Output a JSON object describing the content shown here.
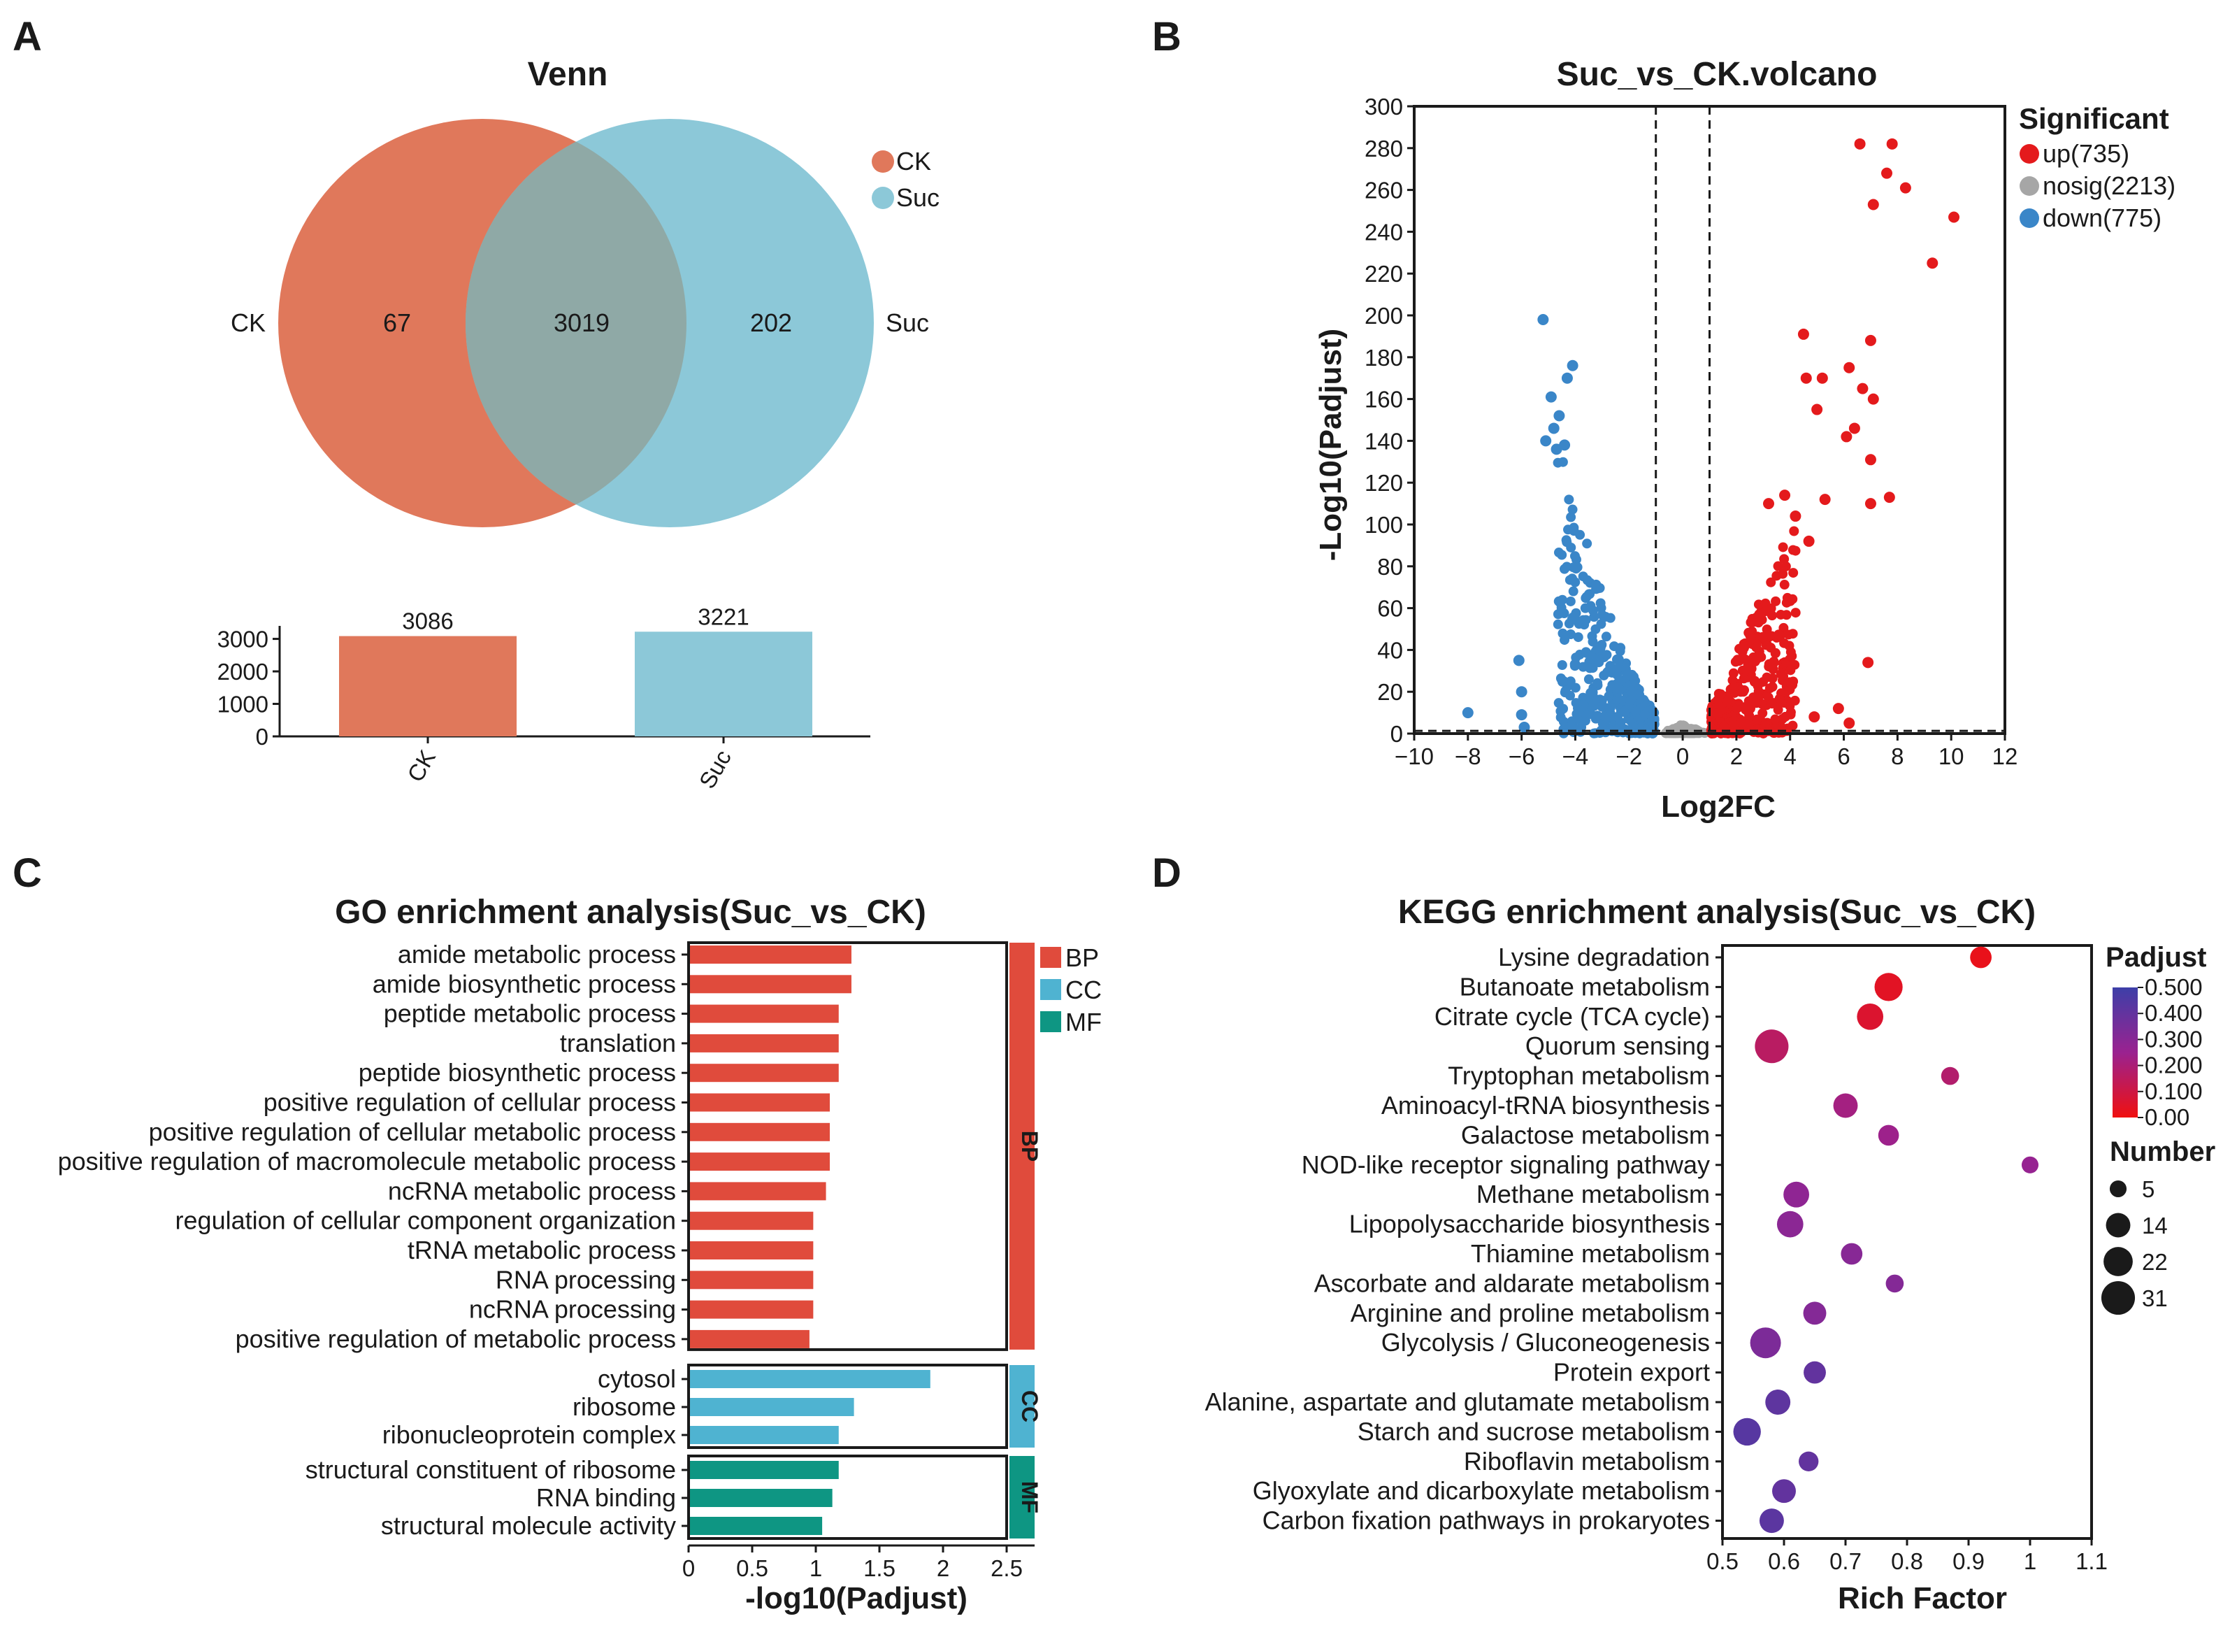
{
  "colors": {
    "ck": "#E0785B",
    "suc": "#8CC8D8",
    "overlap": "#8FA9A6",
    "up": "#E41A1C",
    "nosig": "#A6A6A6",
    "down": "#3A86C8",
    "bp": "#E04B3C",
    "cc": "#4FB3D1",
    "mf": "#0E9683"
  },
  "panel_labels": {
    "a": "A",
    "b": "B",
    "c": "C",
    "d": "D"
  },
  "chart_data": [
    {
      "type": "venn",
      "title": "Venn",
      "sets": [
        "CK",
        "Suc"
      ],
      "legend": [
        "CK",
        "Suc"
      ],
      "regions": {
        "only_ck": "67",
        "both": "3019",
        "only_suc": "202"
      },
      "bar": {
        "type": "bar",
        "categories": [
          "CK",
          "Suc"
        ],
        "values": [
          3086,
          3221
        ],
        "value_labels": [
          "3086",
          "3221"
        ],
        "ylim": [
          0,
          3400
        ],
        "yticks": [
          "0",
          "1000",
          "2000",
          "3000"
        ]
      }
    },
    {
      "type": "scatter",
      "title": "Suc_vs_CK.volcano",
      "xlabel": "Log2FC",
      "ylabel": "-Log10(Padjust)",
      "xlim": [
        -10,
        12
      ],
      "ylim": [
        0,
        300
      ],
      "xticks": [
        "-10",
        "-8",
        "-6",
        "-4",
        "-2",
        "0",
        "2",
        "4",
        "6",
        "8",
        "10",
        "12"
      ],
      "yticks": [
        "0",
        "20",
        "40",
        "60",
        "80",
        "100",
        "120",
        "140",
        "160",
        "180",
        "200",
        "220",
        "240",
        "260",
        "280",
        "300"
      ],
      "thresholds": {
        "log2fc": [
          -1,
          1
        ],
        "padj_line": 1.3
      },
      "legend_title": "Significant",
      "series": [
        {
          "name": "up(735)",
          "key": "up"
        },
        {
          "name": "nosig(2213)",
          "key": "nosig"
        },
        {
          "name": "down(775)",
          "key": "down"
        }
      ],
      "highlight_points": {
        "up": [
          [
            6.6,
            282
          ],
          [
            7.8,
            282
          ],
          [
            7.6,
            268
          ],
          [
            8.3,
            261
          ],
          [
            7.1,
            253
          ],
          [
            10.1,
            247
          ],
          [
            9.3,
            225
          ],
          [
            4.5,
            191
          ],
          [
            7.0,
            188
          ],
          [
            6.2,
            175
          ],
          [
            4.6,
            170
          ],
          [
            5.2,
            170
          ],
          [
            6.7,
            165
          ],
          [
            5.0,
            155
          ],
          [
            7.1,
            160
          ],
          [
            6.4,
            146
          ],
          [
            6.1,
            142
          ],
          [
            7.0,
            131
          ],
          [
            7.7,
            113
          ],
          [
            7.0,
            110
          ],
          [
            5.3,
            112
          ],
          [
            3.2,
            110
          ],
          [
            3.8,
            114
          ],
          [
            4.2,
            104
          ],
          [
            4.7,
            92
          ],
          [
            6.9,
            34
          ],
          [
            5.8,
            12
          ],
          [
            6.2,
            5
          ],
          [
            4.9,
            8
          ]
        ],
        "down": [
          [
            -5.2,
            198
          ],
          [
            -4.1,
            176
          ],
          [
            -4.3,
            170
          ],
          [
            -4.9,
            161
          ],
          [
            -4.6,
            152
          ],
          [
            -4.8,
            146
          ],
          [
            -5.1,
            140
          ],
          [
            -4.4,
            138
          ],
          [
            -4.7,
            136
          ],
          [
            -6.1,
            35
          ],
          [
            -6.0,
            20
          ],
          [
            -8.0,
            10
          ],
          [
            -6.0,
            9
          ],
          [
            -5.9,
            3
          ]
        ]
      }
    },
    {
      "type": "bar",
      "orientation": "horizontal",
      "title": "GO enrichment analysis(Suc_vs_CK)",
      "xlabel": "-log10(Padjust)",
      "xlim": [
        0,
        2.5
      ],
      "xticks": [
        "0",
        "0.5",
        "1",
        "1.5",
        "2",
        "2.5"
      ],
      "legend": [
        "BP",
        "CC",
        "MF"
      ],
      "groups": [
        {
          "name": "BP",
          "items": [
            {
              "label": "amide metabolic process",
              "value": 1.28
            },
            {
              "label": "amide biosynthetic process",
              "value": 1.28
            },
            {
              "label": "peptide metabolic process",
              "value": 1.18
            },
            {
              "label": "translation",
              "value": 1.18
            },
            {
              "label": "peptide biosynthetic process",
              "value": 1.18
            },
            {
              "label": "positive regulation of cellular process",
              "value": 1.11
            },
            {
              "label": "positive regulation of cellular metabolic process",
              "value": 1.11
            },
            {
              "label": "positive regulation of macromolecule metabolic process",
              "value": 1.11
            },
            {
              "label": "ncRNA metabolic process",
              "value": 1.08
            },
            {
              "label": "regulation of cellular component organization",
              "value": 0.98
            },
            {
              "label": "tRNA metabolic process",
              "value": 0.98
            },
            {
              "label": "RNA processing",
              "value": 0.98
            },
            {
              "label": "ncRNA processing",
              "value": 0.98
            },
            {
              "label": "positive regulation of metabolic process",
              "value": 0.95
            }
          ]
        },
        {
          "name": "CC",
          "items": [
            {
              "label": "cytosol",
              "value": 1.9
            },
            {
              "label": "ribosome",
              "value": 1.3
            },
            {
              "label": "ribonucleoprotein complex",
              "value": 1.18
            }
          ]
        },
        {
          "name": "MF",
          "items": [
            {
              "label": "structural constituent of ribosome",
              "value": 1.18
            },
            {
              "label": "RNA binding",
              "value": 1.13
            },
            {
              "label": "structural molecule activity",
              "value": 1.05
            }
          ]
        }
      ]
    },
    {
      "type": "scatter",
      "subtype": "dot",
      "title": "KEGG enrichment analysis(Suc_vs_CK)",
      "xlabel": "Rich Factor",
      "xlim": [
        0.5,
        1.1
      ],
      "xticks": [
        "0.5",
        "0.6",
        "0.7",
        "0.8",
        "0.9",
        "1",
        "1.1"
      ],
      "color_legend_title": "Padjust",
      "color_ticks": [
        "0.500",
        "0.400",
        "0.300",
        "0.200",
        "0.100",
        "0.00"
      ],
      "size_legend_title": "Number",
      "size_ticks": [
        "5",
        "14",
        "22",
        "31"
      ],
      "pathways": [
        {
          "label": "Lysine degradation",
          "rich": 0.92,
          "padj": 0.02,
          "number": 10
        },
        {
          "label": "Butanoate metabolism",
          "rich": 0.77,
          "padj": 0.04,
          "number": 20
        },
        {
          "label": "Citrate cycle (TCA cycle)",
          "rich": 0.74,
          "padj": 0.06,
          "number": 17
        },
        {
          "label": "Quorum sensing",
          "rich": 0.58,
          "padj": 0.16,
          "number": 31
        },
        {
          "label": "Tryptophan metabolism",
          "rich": 0.87,
          "padj": 0.18,
          "number": 6
        },
        {
          "label": "Aminoacyl-tRNA biosynthesis",
          "rich": 0.7,
          "padj": 0.22,
          "number": 14
        },
        {
          "label": "Galactose metabolism",
          "rich": 0.77,
          "padj": 0.24,
          "number": 9
        },
        {
          "label": "NOD-like receptor signaling pathway",
          "rich": 1.0,
          "padj": 0.26,
          "number": 5
        },
        {
          "label": "Methane metabolism",
          "rich": 0.62,
          "padj": 0.28,
          "number": 16
        },
        {
          "label": "Lipopolysaccharide biosynthesis",
          "rich": 0.61,
          "padj": 0.29,
          "number": 17
        },
        {
          "label": "Thiamine metabolism",
          "rich": 0.71,
          "padj": 0.3,
          "number": 10
        },
        {
          "label": "Ascorbate and aldarate metabolism",
          "rich": 0.78,
          "padj": 0.31,
          "number": 6
        },
        {
          "label": "Arginine and proline metabolism",
          "rich": 0.65,
          "padj": 0.31,
          "number": 12
        },
        {
          "label": "Glycolysis / Gluconeogenesis",
          "rich": 0.57,
          "padj": 0.33,
          "number": 25
        },
        {
          "label": "Protein export",
          "rich": 0.65,
          "padj": 0.4,
          "number": 11
        },
        {
          "label": "Alanine, aspartate and glutamate metabolism",
          "rich": 0.59,
          "padj": 0.41,
          "number": 15
        },
        {
          "label": "Starch and sucrose metabolism",
          "rich": 0.54,
          "padj": 0.43,
          "number": 19
        },
        {
          "label": "Riboflavin metabolism",
          "rich": 0.64,
          "padj": 0.4,
          "number": 8
        },
        {
          "label": "Glyoxylate and dicarboxylate metabolism",
          "rich": 0.6,
          "padj": 0.4,
          "number": 13
        },
        {
          "label": "Carbon fixation pathways in prokaryotes",
          "rich": 0.58,
          "padj": 0.42,
          "number": 14
        }
      ]
    }
  ]
}
